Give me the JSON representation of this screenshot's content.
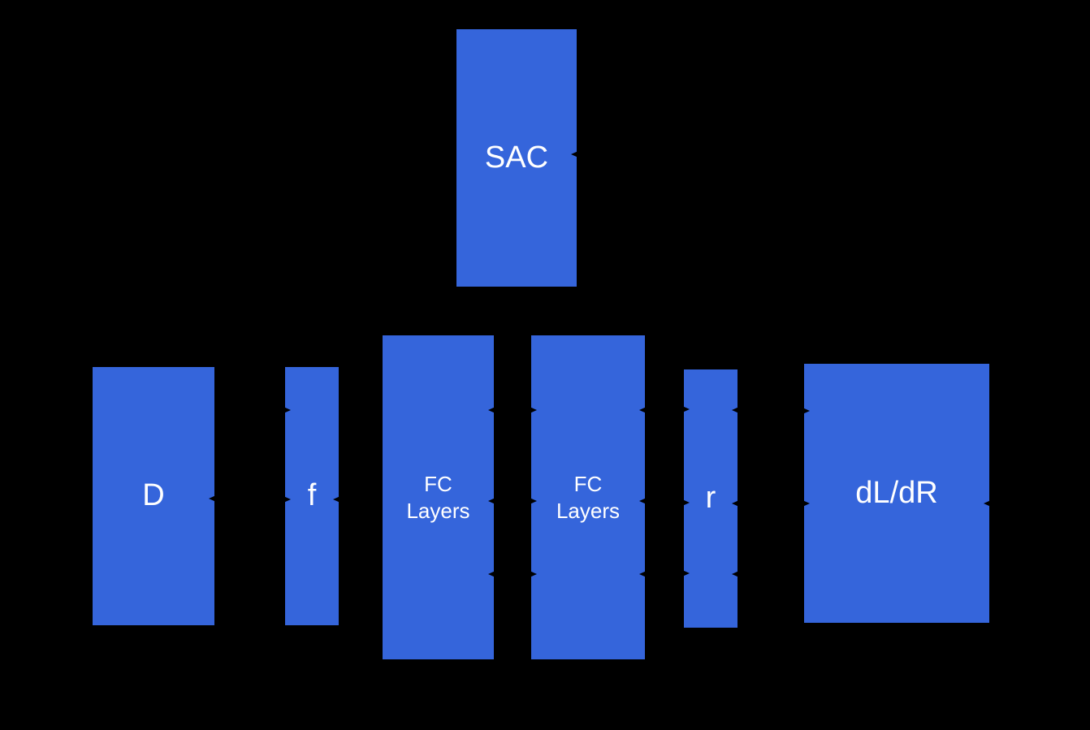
{
  "canvas": {
    "background_color": "#000000"
  },
  "palette": {
    "node_fill": "#3565DB",
    "node_text": "#FFFFFF"
  },
  "nodes": {
    "sac": {
      "label": "SAC"
    },
    "d": {
      "label": "D"
    },
    "f": {
      "label": "f"
    },
    "fc_left": {
      "label": "FC Layers",
      "lines": [
        "FC",
        "Layers"
      ]
    },
    "fc_right": {
      "label": "FC Layers",
      "lines": [
        "FC",
        "Layers"
      ]
    },
    "r": {
      "label": "r"
    },
    "dldr": {
      "label": "dL/dR"
    }
  }
}
